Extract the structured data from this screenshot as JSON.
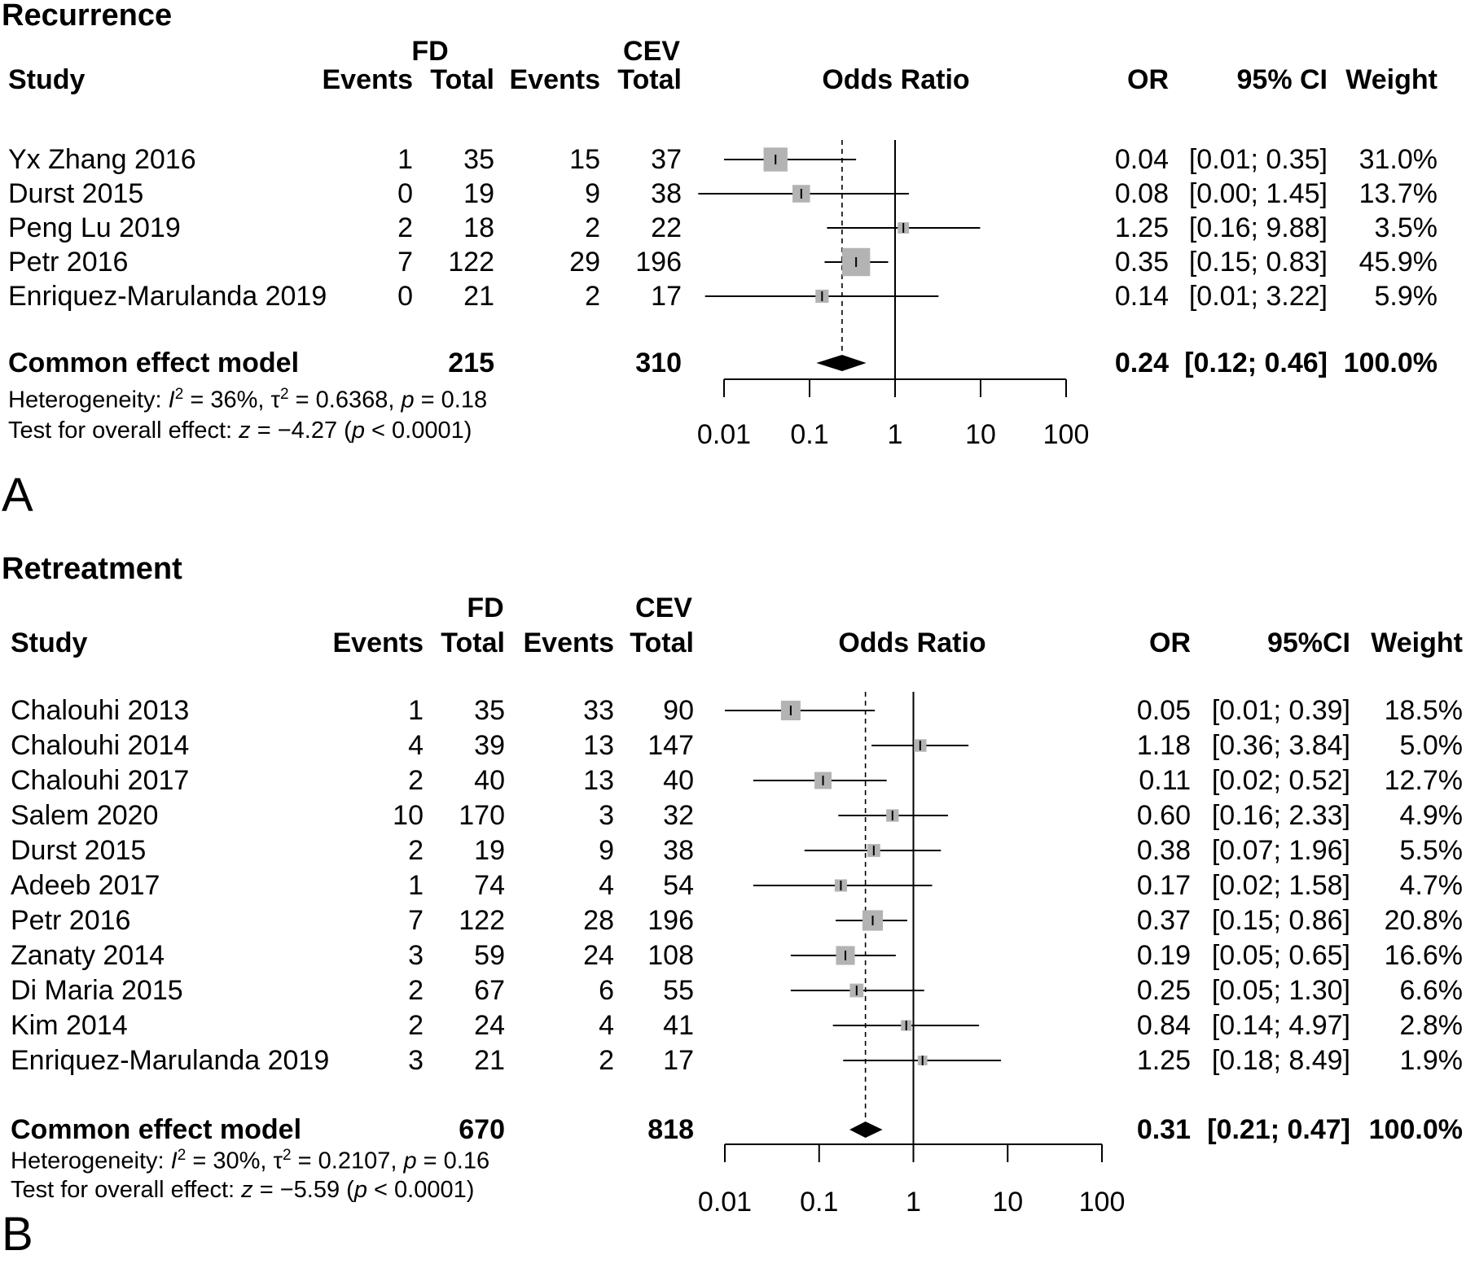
{
  "chart_data": [
    {
      "type": "forest",
      "panel_label": "A",
      "title": "Recurrence",
      "columns": {
        "study": "Study",
        "group1": "FD",
        "group2": "CEV",
        "events": "Events",
        "total": "Total",
        "plot": "Odds Ratio",
        "or": "OR",
        "ci": "95% CI",
        "weight": "Weight"
      },
      "studies": [
        {
          "study": "Yx Zhang 2016",
          "e1": "1",
          "n1": "35",
          "e2": "15",
          "n2": "37",
          "or": 0.04,
          "lo": 0.01,
          "hi": 0.35,
          "weight": 31.0,
          "or_text": "0.04",
          "ci_text": "[0.01; 0.35]",
          "weight_text": "31.0%"
        },
        {
          "study": "Durst 2015",
          "e1": "0",
          "n1": "19",
          "e2": "9",
          "n2": "38",
          "or": 0.08,
          "lo": 0.004,
          "hi": 1.45,
          "weight": 13.7,
          "or_text": "0.08",
          "ci_text": "[0.00; 1.45]",
          "weight_text": "13.7%"
        },
        {
          "study": "Peng Lu 2019",
          "e1": "2",
          "n1": "18",
          "e2": "2",
          "n2": "22",
          "or": 1.25,
          "lo": 0.16,
          "hi": 9.88,
          "weight": 3.5,
          "or_text": "1.25",
          "ci_text": "[0.16; 9.88]",
          "weight_text": "3.5%"
        },
        {
          "study": "Petr 2016",
          "e1": "7",
          "n1": "122",
          "e2": "29",
          "n2": "196",
          "or": 0.35,
          "lo": 0.15,
          "hi": 0.83,
          "weight": 45.9,
          "or_text": "0.35",
          "ci_text": "[0.15; 0.83]",
          "weight_text": "45.9%"
        },
        {
          "study": "Enriquez-Marulanda 2019",
          "e1": "0",
          "n1": "21",
          "e2": "2",
          "n2": "17",
          "or": 0.14,
          "lo": 0.006,
          "hi": 3.22,
          "weight": 5.9,
          "or_text": "0.14",
          "ci_text": "[0.01; 3.22]",
          "weight_text": "5.9%"
        }
      ],
      "pooled": {
        "label": "Common effect model",
        "n1": "215",
        "n2": "310",
        "or": 0.24,
        "lo": 0.12,
        "hi": 0.46,
        "or_text": "0.24",
        "ci_text": "[0.12; 0.46]",
        "weight_text": "100.0%"
      },
      "heterogeneity": {
        "prefix": "Heterogeneity: ",
        "i2_sym": "I",
        "i2_rest": " = 36%, ",
        "tau_sym": "τ",
        "tau_rest": " = 0.6368, ",
        "p_sym": "p",
        "p_rest": " = 0.18"
      },
      "overall": {
        "prefix": "Test for overall effect: ",
        "z_sym": "z",
        "z_rest": " = −4.27 (",
        "p_sym": "p",
        "p_rest": " < 0.0001)"
      },
      "scale": "log",
      "xlim": [
        0.01,
        100
      ],
      "x_ticks": [
        0.01,
        0.1,
        1,
        10,
        100
      ],
      "x_tick_labels": [
        "0.01",
        "0.1",
        "1",
        "10",
        "100"
      ],
      "reference_line": 1
    },
    {
      "type": "forest",
      "panel_label": "B",
      "title": "Retreatment",
      "columns": {
        "study": "Study",
        "group1": "FD",
        "group2": "CEV",
        "events": "Events",
        "total": "Total",
        "plot": "Odds Ratio",
        "or": "OR",
        "ci": "95%CI",
        "weight": "Weight"
      },
      "studies": [
        {
          "study": "Chalouhi 2013",
          "e1": "1",
          "n1": "35",
          "e2": "33",
          "n2": "90",
          "or": 0.05,
          "lo": 0.01,
          "hi": 0.39,
          "weight": 18.5,
          "or_text": "0.05",
          "ci_text": "[0.01; 0.39]",
          "weight_text": "18.5%"
        },
        {
          "study": "Chalouhi 2014",
          "e1": "4",
          "n1": "39",
          "e2": "13",
          "n2": "147",
          "or": 1.18,
          "lo": 0.36,
          "hi": 3.84,
          "weight": 5.0,
          "or_text": "1.18",
          "ci_text": "[0.36; 3.84]",
          "weight_text": "5.0%"
        },
        {
          "study": "Chalouhi 2017",
          "e1": "2",
          "n1": "40",
          "e2": "13",
          "n2": "40",
          "or": 0.11,
          "lo": 0.02,
          "hi": 0.52,
          "weight": 12.7,
          "or_text": "0.11",
          "ci_text": "[0.02; 0.52]",
          "weight_text": "12.7%"
        },
        {
          "study": "Salem 2020",
          "e1": "10",
          "n1": "170",
          "e2": "3",
          "n2": "32",
          "or": 0.6,
          "lo": 0.16,
          "hi": 2.33,
          "weight": 4.9,
          "or_text": "0.60",
          "ci_text": "[0.16; 2.33]",
          "weight_text": "4.9%"
        },
        {
          "study": "Durst 2015",
          "e1": "2",
          "n1": "19",
          "e2": "9",
          "n2": "38",
          "or": 0.38,
          "lo": 0.07,
          "hi": 1.96,
          "weight": 5.5,
          "or_text": "0.38",
          "ci_text": "[0.07; 1.96]",
          "weight_text": "5.5%"
        },
        {
          "study": "Adeeb 2017",
          "e1": "1",
          "n1": "74",
          "e2": "4",
          "n2": "54",
          "or": 0.17,
          "lo": 0.02,
          "hi": 1.58,
          "weight": 4.7,
          "or_text": "0.17",
          "ci_text": "[0.02; 1.58]",
          "weight_text": "4.7%"
        },
        {
          "study": "Petr 2016",
          "e1": "7",
          "n1": "122",
          "e2": "28",
          "n2": "196",
          "or": 0.37,
          "lo": 0.15,
          "hi": 0.86,
          "weight": 20.8,
          "or_text": "0.37",
          "ci_text": "[0.15; 0.86]",
          "weight_text": "20.8%"
        },
        {
          "study": "Zanaty 2014",
          "e1": "3",
          "n1": "59",
          "e2": "24",
          "n2": "108",
          "or": 0.19,
          "lo": 0.05,
          "hi": 0.65,
          "weight": 16.6,
          "or_text": "0.19",
          "ci_text": "[0.05; 0.65]",
          "weight_text": "16.6%"
        },
        {
          "study": "Di Maria 2015",
          "e1": "2",
          "n1": "67",
          "e2": "6",
          "n2": "55",
          "or": 0.25,
          "lo": 0.05,
          "hi": 1.3,
          "weight": 6.6,
          "or_text": "0.25",
          "ci_text": "[0.05; 1.30]",
          "weight_text": "6.6%"
        },
        {
          "study": "Kim 2014",
          "e1": "2",
          "n1": "24",
          "e2": "4",
          "n2": "41",
          "or": 0.84,
          "lo": 0.14,
          "hi": 4.97,
          "weight": 2.8,
          "or_text": "0.84",
          "ci_text": "[0.14; 4.97]",
          "weight_text": "2.8%"
        },
        {
          "study": "Enriquez-Marulanda 2019",
          "e1": "3",
          "n1": "21",
          "e2": "2",
          "n2": "17",
          "or": 1.25,
          "lo": 0.18,
          "hi": 8.49,
          "weight": 1.9,
          "or_text": "1.25",
          "ci_text": "[0.18; 8.49]",
          "weight_text": "1.9%"
        }
      ],
      "pooled": {
        "label": "Common effect model",
        "n1": "670",
        "n2": "818",
        "or": 0.31,
        "lo": 0.21,
        "hi": 0.47,
        "or_text": "0.31",
        "ci_text": "[0.21; 0.47]",
        "weight_text": "100.0%"
      },
      "heterogeneity": {
        "prefix": "Heterogeneity: ",
        "i2_sym": "I",
        "i2_rest": " = 30%, ",
        "tau_sym": "τ",
        "tau_rest": " = 0.2107, ",
        "p_sym": "p",
        "p_rest": " = 0.16"
      },
      "overall": {
        "prefix": "Test for overall effect: ",
        "z_sym": "z",
        "z_rest": " = −5.59 (",
        "p_sym": "p",
        "p_rest": " < 0.0001)"
      },
      "scale": "log",
      "xlim": [
        0.01,
        100
      ],
      "x_ticks": [
        0.01,
        0.1,
        1,
        10,
        100
      ],
      "x_tick_labels": [
        "0.01",
        "0.1",
        "1",
        "10",
        "100"
      ],
      "reference_line": 1
    }
  ],
  "colors": {
    "square": "#b3b3b3",
    "line": "#000000",
    "diamond": "#000000"
  }
}
